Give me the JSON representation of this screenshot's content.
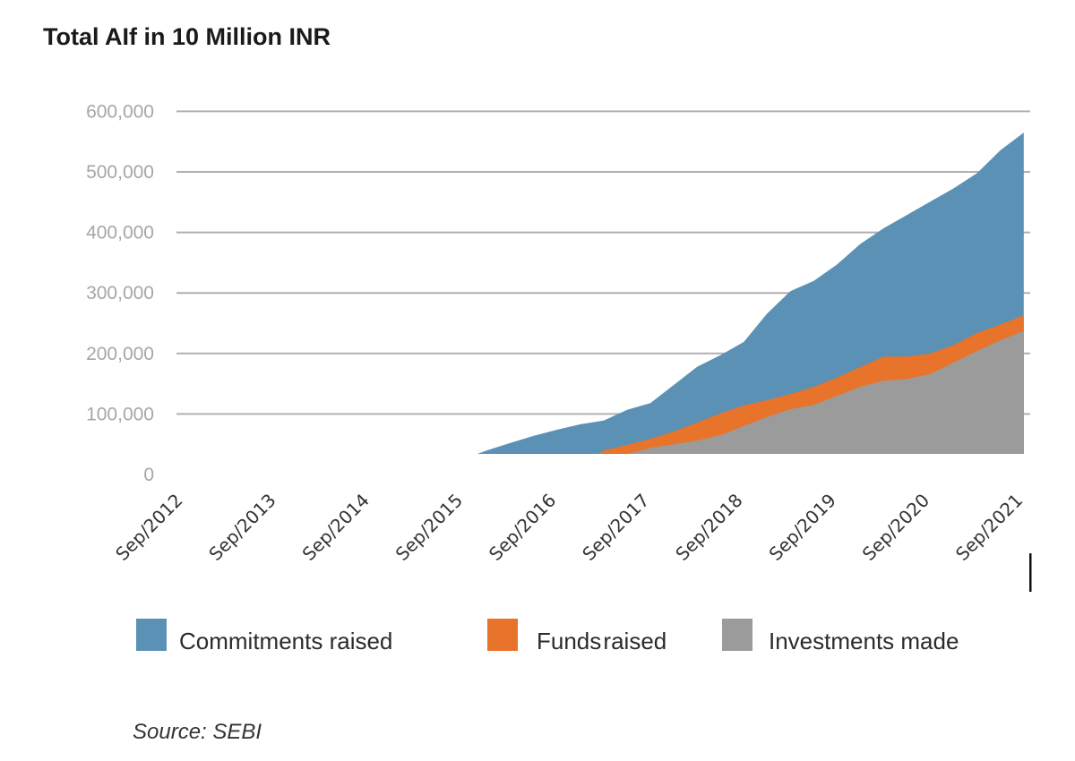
{
  "chart_data": {
    "type": "area",
    "stacked": true,
    "title": "Total AIf  in 10 Million INR",
    "xlabel": "",
    "ylabel": "",
    "ylim": [
      0,
      600000
    ],
    "yticks": [
      0,
      100000,
      200000,
      300000,
      400000,
      500000,
      600000
    ],
    "ytick_labels": [
      "0",
      "100,000",
      "200,000",
      "300,000",
      "400,000",
      "500,000",
      "600,000"
    ],
    "xtick_labels": [
      "Sep/2012",
      "Sep/2013",
      "Sep/2014",
      "Sep/2015",
      "Sep/2016",
      "Sep/2017",
      "Sep/2018",
      "Sep/2019",
      "Sep/2020",
      "Sep/2021"
    ],
    "grid": true,
    "legend_position": "bottom",
    "x": [
      "Dec/2015",
      "Mar/2016",
      "Jun/2016",
      "Sep/2016",
      "Dec/2016",
      "Mar/2017",
      "Jun/2017",
      "Sep/2017",
      "Dec/2017",
      "Mar/2018",
      "Jun/2018",
      "Sep/2018",
      "Dec/2018",
      "Mar/2019",
      "Jun/2019",
      "Sep/2019",
      "Dec/2019",
      "Mar/2020",
      "Jun/2020",
      "Sep/2020",
      "Dec/2020",
      "Mar/2021",
      "Jun/2021",
      "Sep/2021"
    ],
    "series": [
      {
        "name": "Investments made",
        "color": "#9b9b9b",
        "values": [
          10000,
          14000,
          18000,
          22000,
          26000,
          30000,
          36000,
          44000,
          50000,
          56000,
          65000,
          80000,
          95000,
          108000,
          115000,
          130000,
          145000,
          155000,
          158000,
          166000,
          185000,
          204000,
          222000,
          237000
        ]
      },
      {
        "name": "Funds raised",
        "color": "#e8732a",
        "values": [
          4000,
          6000,
          7000,
          8000,
          8000,
          10000,
          13000,
          15000,
          21000,
          30000,
          36000,
          34000,
          28000,
          25000,
          30000,
          30000,
          33000,
          40000,
          37000,
          34000,
          29000,
          30000,
          26000,
          26000
        ]
      },
      {
        "name": "Commitments raised",
        "color": "#5b91b5",
        "values": [
          26000,
          32000,
          39000,
          44000,
          49000,
          49000,
          58000,
          59000,
          77000,
          92000,
          96000,
          105000,
          143000,
          170000,
          175000,
          187000,
          203000,
          212000,
          234000,
          251000,
          259000,
          264000,
          288000,
          302000
        ]
      }
    ],
    "source": "Source: SEBI"
  },
  "legend": [
    {
      "label": "Commitments raised",
      "color": "#5b91b5"
    },
    {
      "label": "Funds raised",
      "color": "#e8732a"
    },
    {
      "label": "Investments made",
      "color": "#9b9b9b"
    }
  ]
}
